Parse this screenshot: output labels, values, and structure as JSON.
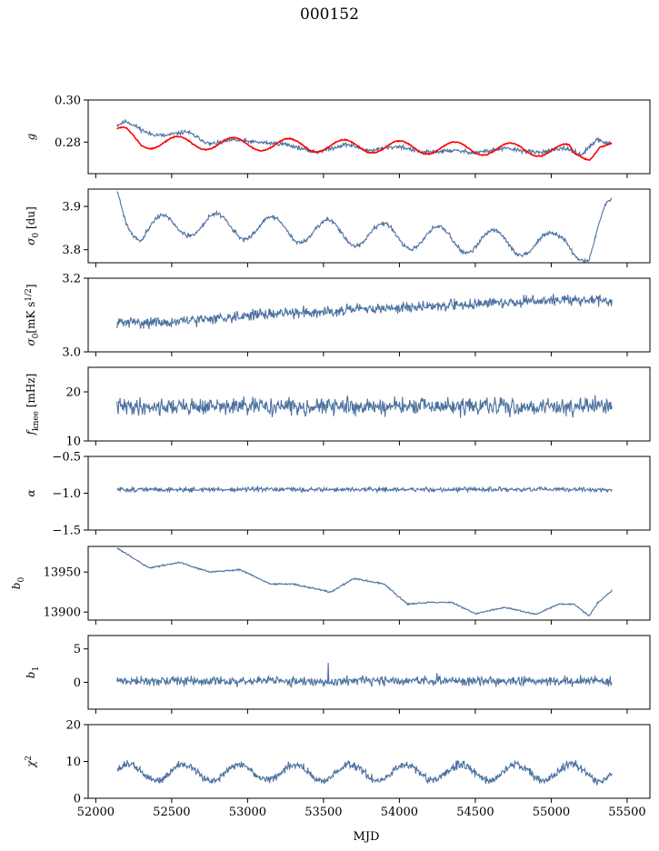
{
  "figure": {
    "title": "000152"
  },
  "chart_data": {
    "type": "line",
    "title": "000152",
    "xlabel": "MJD",
    "xlim": [
      51950,
      55650
    ],
    "x_ticks": [
      52000,
      52500,
      53000,
      53500,
      54000,
      54500,
      55000,
      55500
    ],
    "x_tick_labels": [
      "52000",
      "52500",
      "53000",
      "53500",
      "54000",
      "54500",
      "55000",
      "55500"
    ],
    "x_start": 52140,
    "x_end": 55400,
    "colors": {
      "data": "#4c72a0",
      "fit": "#ff0000"
    },
    "panels": [
      {
        "ylabel": "g",
        "ylim": [
          0.265,
          0.3
        ],
        "yticks": [
          0.28,
          0.3
        ],
        "ytick_labels": [
          "0.28",
          "0.30"
        ],
        "series": [
          {
            "color": "#4c72a0",
            "anchors": [
              [
                52140,
                0.288
              ],
              [
                52200,
                0.29
              ],
              [
                52350,
                0.284
              ],
              [
                52450,
                0.283
              ],
              [
                52600,
                0.285
              ],
              [
                52750,
                0.279
              ],
              [
                52900,
                0.281
              ],
              [
                53050,
                0.28
              ],
              [
                53250,
                0.279
              ],
              [
                53450,
                0.275
              ],
              [
                53650,
                0.279
              ],
              [
                53800,
                0.276
              ],
              [
                54000,
                0.278
              ],
              [
                54150,
                0.275
              ],
              [
                54350,
                0.276
              ],
              [
                54500,
                0.275
              ],
              [
                54700,
                0.277
              ],
              [
                54900,
                0.275
              ],
              [
                55100,
                0.277
              ],
              [
                55200,
                0.274
              ],
              [
                55300,
                0.281
              ],
              [
                55400,
                0.279
              ]
            ],
            "noise": 0.0008,
            "period": 0,
            "amp": 0,
            "seed": 11
          },
          {
            "color": "#ff0000",
            "anchors": [
              [
                52120,
                0.266
              ],
              [
                52140,
                0.284
              ],
              [
                52200,
                0.284
              ],
              [
                52300,
                0.28
              ],
              [
                55120,
                0.276
              ],
              [
                55150,
                0.273
              ],
              [
                55250,
                0.274
              ],
              [
                55320,
                0.28
              ],
              [
                55400,
                0.278
              ]
            ],
            "noise": 0.0002,
            "period": 365,
            "amp": 0.003,
            "phase": 0.3,
            "seed": 12
          }
        ]
      },
      {
        "ylabel": "σ0 [du]",
        "ylim": [
          3.77,
          3.94
        ],
        "yticks": [
          3.8,
          3.9
        ],
        "ytick_labels": [
          "3.8",
          "3.9"
        ],
        "series": [
          {
            "color": "#4c72a0",
            "anchors": [
              [
                52140,
                3.93
              ],
              [
                52200,
                3.88
              ],
              [
                52300,
                3.84
              ],
              [
                52400,
                3.85
              ],
              [
                52600,
                3.86
              ],
              [
                55000,
                3.81
              ],
              [
                55100,
                3.83
              ],
              [
                55200,
                3.8
              ],
              [
                55250,
                3.78
              ],
              [
                55350,
                3.87
              ],
              [
                55400,
                3.9
              ]
            ],
            "noise": 0.004,
            "period": 365,
            "amp": 0.028,
            "phase": 0.6,
            "seed": 21
          }
        ]
      },
      {
        "ylabel": "σ0[mK s^1/2]",
        "ylim": [
          3.0,
          3.2
        ],
        "yticks": [
          3.0,
          3.2
        ],
        "ytick_labels": [
          "3.0",
          "3.2"
        ],
        "series": [
          {
            "color": "#4c72a0",
            "anchors": [
              [
                52140,
                3.08
              ],
              [
                52500,
                3.08
              ],
              [
                53000,
                3.1
              ],
              [
                53500,
                3.11
              ],
              [
                54000,
                3.12
              ],
              [
                54500,
                3.13
              ],
              [
                55000,
                3.14
              ],
              [
                55400,
                3.14
              ]
            ],
            "noise": 0.012,
            "period": 0,
            "amp": 0,
            "seed": 31
          }
        ]
      },
      {
        "ylabel": "fknee [mHz]",
        "ylim": [
          10,
          25
        ],
        "yticks": [
          10,
          20
        ],
        "ytick_labels": [
          "10",
          "20"
        ],
        "series": [
          {
            "color": "#4c72a0",
            "anchors": [
              [
                52140,
                17
              ],
              [
                55400,
                17
              ]
            ],
            "noise": 1.4,
            "period": 0,
            "amp": 0,
            "seed": 41
          }
        ]
      },
      {
        "ylabel": "α",
        "ylim": [
          -1.5,
          -0.5
        ],
        "yticks": [
          -1.5,
          -1.0,
          -0.5
        ],
        "ytick_labels": [
          "−1.5",
          "−1.0",
          "−0.5"
        ],
        "series": [
          {
            "color": "#4c72a0",
            "anchors": [
              [
                52140,
                -0.95
              ],
              [
                55400,
                -0.95
              ]
            ],
            "noise": 0.025,
            "period": 0,
            "amp": 0,
            "seed": 51
          }
        ]
      },
      {
        "ylabel": "b0",
        "ylim": [
          13890,
          13982
        ],
        "yticks": [
          13900,
          13950
        ],
        "ytick_labels": [
          "13900",
          "13950"
        ],
        "series": [
          {
            "color": "#4c72a0",
            "anchors": [
              [
                52140,
                13980
              ],
              [
                52350,
                13955
              ],
              [
                52550,
                13962
              ],
              [
                52750,
                13950
              ],
              [
                52950,
                13953
              ],
              [
                53150,
                13935
              ],
              [
                53300,
                13935
              ],
              [
                53550,
                13925
              ],
              [
                53700,
                13942
              ],
              [
                53900,
                13935
              ],
              [
                54050,
                13910
              ],
              [
                54200,
                13912
              ],
              [
                54350,
                13912
              ],
              [
                54500,
                13898
              ],
              [
                54700,
                13906
              ],
              [
                54900,
                13897
              ],
              [
                55050,
                13910
              ],
              [
                55150,
                13910
              ],
              [
                55250,
                13895
              ],
              [
                55300,
                13910
              ],
              [
                55400,
                13927
              ]
            ],
            "noise": 0.8,
            "period": 0,
            "amp": 0,
            "seed": 61
          }
        ]
      },
      {
        "ylabel": "b1",
        "ylim": [
          -4,
          7
        ],
        "yticks": [
          0,
          5
        ],
        "ytick_labels": [
          "0",
          "5"
        ],
        "series": [
          {
            "color": "#4c72a0",
            "anchors": [
              [
                52140,
                0.2
              ],
              [
                55400,
                0.2
              ]
            ],
            "noise": 0.55,
            "period": 0,
            "amp": 0,
            "seed": 71
          }
        ]
      },
      {
        "ylabel": "χ2",
        "ylim": [
          0,
          20
        ],
        "yticks": [
          0,
          10,
          20
        ],
        "ytick_labels": [
          "0",
          "10",
          "20"
        ],
        "series": [
          {
            "color": "#4c72a0",
            "anchors": [
              [
                52140,
                7
              ],
              [
                55400,
                7
              ]
            ],
            "noise": 0.9,
            "period": 365,
            "amp": 2.2,
            "phase": 0.2,
            "seed": 81
          }
        ]
      }
    ]
  }
}
